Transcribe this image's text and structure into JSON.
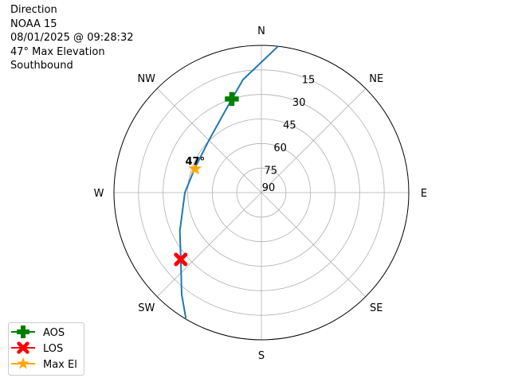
{
  "info": {
    "title": "Direction",
    "satellite": "NOAA 15",
    "datetime": "08/01/2025 @ 09:28:32",
    "max_elevation": "47° Max Elevation",
    "direction": "Southbound"
  },
  "chart_data": {
    "type": "polar-line",
    "theta_direction": "clockwise",
    "theta_zero": "N",
    "compass_labels": [
      {
        "label": "N",
        "az": 0
      },
      {
        "label": "NE",
        "az": 45
      },
      {
        "label": "E",
        "az": 90
      },
      {
        "label": "SE",
        "az": 135
      },
      {
        "label": "S",
        "az": 180
      },
      {
        "label": "SW",
        "az": 225
      },
      {
        "label": "W",
        "az": 270
      },
      {
        "label": "NW",
        "az": 315
      }
    ],
    "radial_ticks": [
      15,
      30,
      45,
      60,
      75,
      90
    ],
    "radial_axis": "elevation (90 at centre, 0 at edge)",
    "grid": true,
    "track": {
      "color": "#1f77b4",
      "az": [
        6.5,
        350.8,
        342.5,
        315,
        289.7,
        270,
        244.8,
        230.3,
        218,
        211
      ],
      "el": [
        0,
        20,
        30,
        44.7,
        46.7,
        43.3,
        35,
        26.1,
        11,
        0.5
      ]
    },
    "markers": [
      {
        "name": "AOS",
        "az": 342.5,
        "el": 30,
        "color": "#008000",
        "symbol": "plus"
      },
      {
        "name": "LOS",
        "az": 230.3,
        "el": 26,
        "color": "#ff0000",
        "symbol": "x"
      },
      {
        "name": "Max El",
        "az": 289.7,
        "el": 47,
        "color": "#ffa500",
        "symbol": "star",
        "label": "47°"
      }
    ],
    "legend": {
      "placement": "lower-left",
      "entries": [
        "AOS",
        "LOS",
        "Max El"
      ]
    }
  }
}
